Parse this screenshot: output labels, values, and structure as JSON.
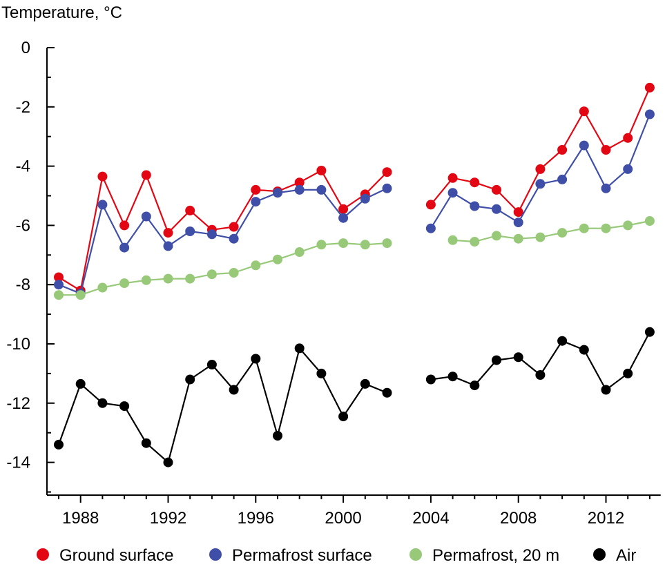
{
  "chart_data": {
    "type": "line",
    "ylabel": "Temperature, °C",
    "xlabel": "",
    "xlim": [
      1986.5,
      2014.5
    ],
    "ylim": [
      -15,
      0
    ],
    "x_ticks": [
      1988,
      1992,
      1996,
      2000,
      2004,
      2008,
      2012
    ],
    "x_minor_ticks": [
      1987,
      1988,
      1989,
      1990,
      1991,
      1992,
      1993,
      1994,
      1995,
      1996,
      1997,
      1998,
      1999,
      2000,
      2001,
      2002,
      2003,
      2004,
      2005,
      2006,
      2007,
      2008,
      2009,
      2010,
      2011,
      2012,
      2013,
      2014
    ],
    "y_ticks": [
      0,
      -2,
      -4,
      -6,
      -8,
      -10,
      -12,
      -14
    ],
    "y_minor_ticks": [
      -1,
      -3,
      -5,
      -7,
      -9,
      -11,
      -13,
      -15
    ],
    "grid": false,
    "legend_position": "bottom",
    "series": [
      {
        "name": "Ground surface",
        "color": "#e30613",
        "segments": [
          {
            "x": [
              1987,
              1988,
              1989,
              1990,
              1991,
              1992,
              1993,
              1994,
              1995,
              1996,
              1997,
              1998,
              1999,
              2000,
              2001,
              2002
            ],
            "y": [
              -7.75,
              -8.2,
              -4.35,
              -6.0,
              -4.3,
              -6.25,
              -5.5,
              -6.15,
              -6.05,
              -4.8,
              -4.85,
              -4.55,
              -4.15,
              -5.45,
              -4.95,
              -4.2
            ]
          },
          {
            "x": [
              2004,
              2005,
              2006,
              2007,
              2008,
              2009,
              2010,
              2011,
              2012,
              2013,
              2014
            ],
            "y": [
              -5.3,
              -4.4,
              -4.55,
              -4.8,
              -5.55,
              -4.1,
              -3.45,
              -2.15,
              -3.45,
              -3.05,
              -1.35
            ]
          }
        ]
      },
      {
        "name": "Permafrost surface",
        "color": "#3f4fa8",
        "segments": [
          {
            "x": [
              1987,
              1988,
              1989,
              1990,
              1991,
              1992,
              1993,
              1994,
              1995,
              1996,
              1997,
              1998,
              1999,
              2000,
              2001,
              2002
            ],
            "y": [
              -8.0,
              -8.3,
              -5.3,
              -6.75,
              -5.7,
              -6.7,
              -6.2,
              -6.3,
              -6.45,
              -5.2,
              -4.9,
              -4.8,
              -4.8,
              -5.75,
              -5.1,
              -4.75
            ]
          },
          {
            "x": [
              2004,
              2005,
              2006,
              2007,
              2008,
              2009,
              2010,
              2011,
              2012,
              2013,
              2014
            ],
            "y": [
              -6.1,
              -4.9,
              -5.35,
              -5.45,
              -5.9,
              -4.6,
              -4.45,
              -3.3,
              -4.75,
              -4.1,
              -2.25
            ]
          }
        ]
      },
      {
        "name": "Permafrost, 20 m",
        "color": "#97c979",
        "segments": [
          {
            "x": [
              1987,
              1988,
              1989,
              1990,
              1991,
              1992,
              1993,
              1994,
              1995,
              1996,
              1997,
              1998,
              1999,
              2000,
              2001,
              2002
            ],
            "y": [
              -8.35,
              -8.35,
              -8.1,
              -7.95,
              -7.85,
              -7.8,
              -7.8,
              -7.65,
              -7.6,
              -7.35,
              -7.15,
              -6.9,
              -6.65,
              -6.6,
              -6.65,
              -6.6
            ]
          },
          {
            "x": [
              2005,
              2006,
              2007,
              2008,
              2009,
              2010,
              2011,
              2012,
              2013,
              2014
            ],
            "y": [
              -6.5,
              -6.55,
              -6.35,
              -6.45,
              -6.4,
              -6.25,
              -6.1,
              -6.1,
              -6.0,
              -5.85
            ]
          }
        ]
      },
      {
        "name": "Air",
        "color": "#000000",
        "segments": [
          {
            "x": [
              1987,
              1988,
              1989,
              1990,
              1991,
              1992,
              1993,
              1994,
              1995,
              1996,
              1997,
              1998,
              1999,
              2000,
              2001,
              2002
            ],
            "y": [
              -13.4,
              -11.35,
              -12.0,
              -12.1,
              -13.35,
              -14.0,
              -11.2,
              -10.7,
              -11.55,
              -10.5,
              -13.1,
              -10.15,
              -11.0,
              -12.45,
              -11.35,
              -11.65
            ]
          },
          {
            "x": [
              2004,
              2005,
              2006,
              2007,
              2008,
              2009,
              2010,
              2011,
              2012,
              2013,
              2014
            ],
            "y": [
              -11.2,
              -11.1,
              -11.4,
              -10.55,
              -10.45,
              -11.05,
              -9.9,
              -10.2,
              -11.55,
              -11.0,
              -9.6
            ]
          }
        ]
      }
    ]
  }
}
